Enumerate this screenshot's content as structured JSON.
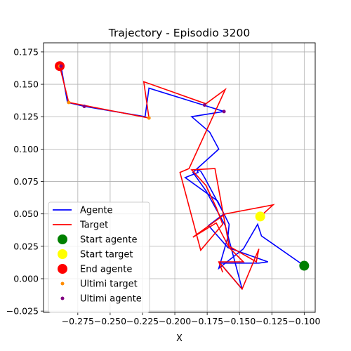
{
  "chart_data": {
    "type": "line",
    "title": "Trajectory - Episodio 3200",
    "xlabel": "X",
    "ylabel": "",
    "xlim": [
      -0.3015,
      -0.0915
    ],
    "ylim": [
      -0.026,
      0.182
    ],
    "grid": true,
    "legend_position": "lower-left",
    "x_ticks": [
      -0.275,
      -0.25,
      -0.225,
      -0.2,
      -0.175,
      -0.15,
      -0.125,
      -0.1
    ],
    "x_tick_labels": [
      "−0.275",
      "−0.250",
      "−0.225",
      "−0.200",
      "−0.175",
      "−0.150",
      "−0.125",
      "−0.100"
    ],
    "y_ticks": [
      -0.025,
      0.0,
      0.025,
      0.05,
      0.075,
      0.1,
      0.125,
      0.15,
      0.175
    ],
    "y_tick_labels": [
      "−0.025",
      "0.000",
      "0.025",
      "0.050",
      "0.075",
      "0.100",
      "0.125",
      "0.150",
      "0.175"
    ],
    "series": [
      {
        "name": "Agente",
        "kind": "line",
        "color": "#0000ff",
        "x": [
          -0.1,
          -0.133,
          -0.136,
          -0.147,
          -0.166,
          -0.159,
          -0.158,
          -0.167,
          -0.192,
          -0.182,
          -0.183,
          -0.18,
          -0.177,
          -0.162,
          -0.174,
          -0.159,
          -0.128,
          -0.135,
          -0.136,
          -0.163,
          -0.165,
          -0.148,
          -0.161,
          -0.176,
          -0.186,
          -0.166,
          -0.173,
          -0.187,
          -0.162,
          -0.178,
          -0.22,
          -0.223,
          -0.27,
          -0.283,
          -0.288
        ],
        "y": [
          0.01,
          0.033,
          0.042,
          0.023,
          0.008,
          0.032,
          0.042,
          0.06,
          0.078,
          0.082,
          0.084,
          0.083,
          0.078,
          0.05,
          0.041,
          0.024,
          0.013,
          0.012,
          0.012,
          0.012,
          0.012,
          -0.008,
          0.041,
          0.068,
          0.082,
          0.1,
          0.113,
          0.125,
          0.129,
          0.134,
          0.147,
          0.125,
          0.133,
          0.136,
          0.164
        ]
      },
      {
        "name": "Target",
        "kind": "line",
        "color": "#ff0000",
        "x": [
          -0.134,
          -0.124,
          -0.161,
          -0.186,
          -0.168,
          -0.158,
          -0.147,
          -0.166,
          -0.163,
          -0.166,
          -0.148,
          -0.135,
          -0.137,
          -0.158,
          -0.169,
          -0.187,
          -0.176,
          -0.168,
          -0.163,
          -0.18,
          -0.196,
          -0.189,
          -0.161,
          -0.176,
          -0.224,
          -0.22,
          -0.282,
          -0.289
        ],
        "y": [
          0.048,
          0.057,
          0.05,
          0.032,
          0.043,
          0.024,
          0.013,
          0.013,
          0.005,
          0.013,
          -0.008,
          0.023,
          0.013,
          0.025,
          0.085,
          0.084,
          0.072,
          0.055,
          0.042,
          0.022,
          0.082,
          0.085,
          0.146,
          0.135,
          0.152,
          0.124,
          0.136,
          0.164
        ]
      }
    ],
    "markers": [
      {
        "name": "Start agente",
        "color": "#008000",
        "size": 7,
        "points": [
          [
            -0.1,
            0.01
          ]
        ]
      },
      {
        "name": "Start target",
        "color": "#ffff00",
        "size": 7,
        "points": [
          [
            -0.134,
            0.048
          ]
        ]
      },
      {
        "name": "End agente",
        "color": "#ff0000",
        "size": 7,
        "points": [
          [
            -0.289,
            0.164
          ]
        ]
      },
      {
        "name": "Ultimi target",
        "color": "#ff8c00",
        "size": 2.5,
        "points": [
          [
            -0.282,
            0.136
          ],
          [
            -0.22,
            0.124
          ],
          [
            -0.289,
            0.164
          ]
        ]
      },
      {
        "name": "Ultimi agente",
        "color": "#800080",
        "size": 2.5,
        "points": [
          [
            -0.27,
            0.133
          ],
          [
            -0.177,
            0.134
          ],
          [
            -0.162,
            0.129
          ],
          [
            -0.288,
            0.164
          ]
        ]
      }
    ]
  }
}
